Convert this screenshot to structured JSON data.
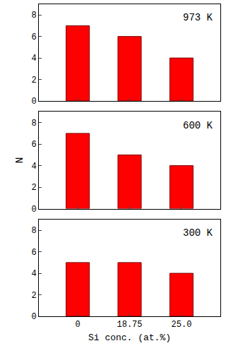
{
  "chart_data": [
    {
      "type": "bar",
      "annotation": "973 K",
      "categories": [
        "0",
        "18.75",
        "25.0"
      ],
      "values": [
        7,
        6,
        4
      ],
      "color": "#ff0000",
      "ylim": [
        0,
        9
      ],
      "yticks": [
        0,
        2,
        4,
        6,
        8
      ],
      "grid": false
    },
    {
      "type": "bar",
      "annotation": "600 K",
      "y_label": "N",
      "categories": [
        "0",
        "18.75",
        "25.0"
      ],
      "values": [
        7,
        5,
        4
      ],
      "color": "#ff0000",
      "ylim": [
        0,
        9
      ],
      "yticks": [
        0,
        2,
        4,
        6,
        8
      ],
      "grid": false
    },
    {
      "type": "bar",
      "annotation": "300 K",
      "x_label": "Si conc. (at.%)",
      "categories": [
        "0",
        "18.75",
        "25.0"
      ],
      "values": [
        5,
        5,
        4
      ],
      "color": "#ff0000",
      "ylim": [
        0,
        9
      ],
      "yticks": [
        0,
        2,
        4,
        6,
        8
      ],
      "grid": false
    }
  ]
}
